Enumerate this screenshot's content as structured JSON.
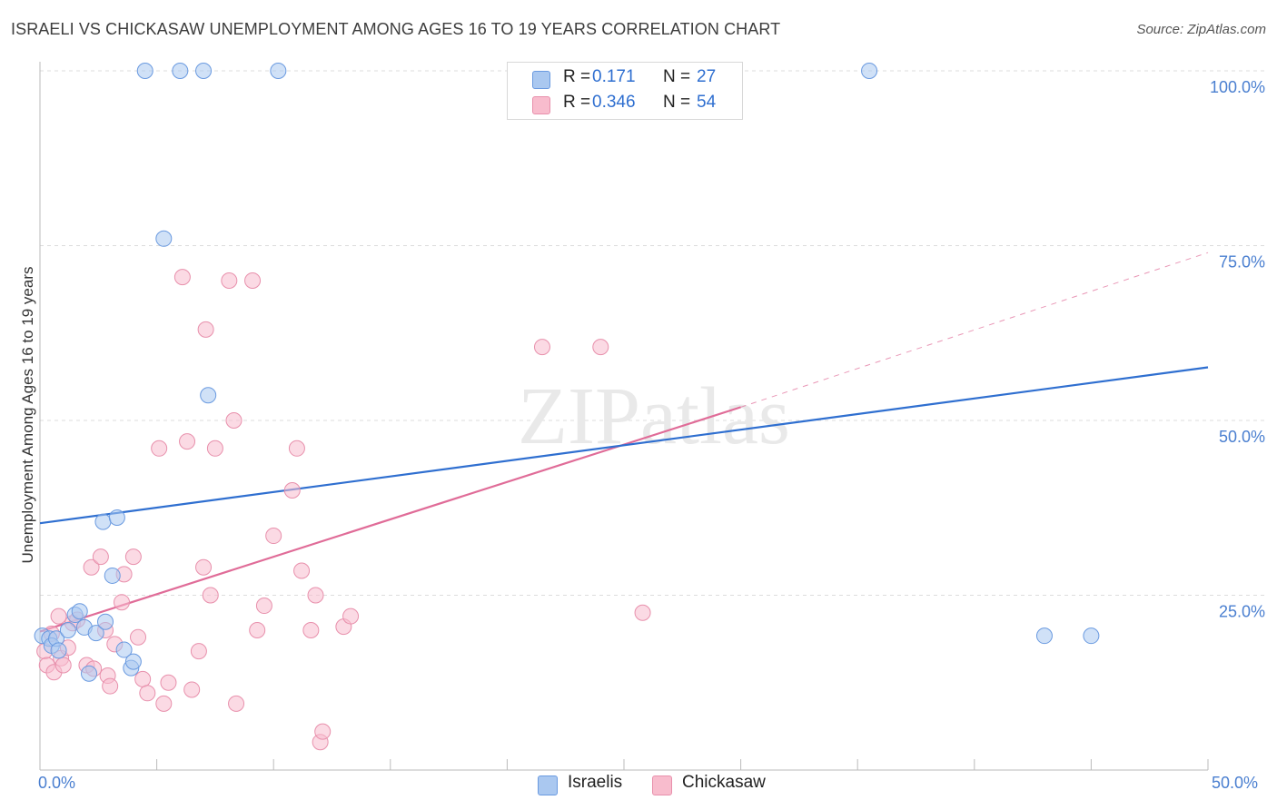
{
  "title": "ISRAELI VS CHICKASAW UNEMPLOYMENT AMONG AGES 16 TO 19 YEARS CORRELATION CHART",
  "source": "Source: ZipAtlas.com",
  "watermark": "ZIPatlas",
  "legend_top": {
    "rows": [
      {
        "r_label": "R =",
        "r_value": "0.171",
        "n_label": "N =",
        "n_value": "27"
      },
      {
        "r_label": "R =",
        "r_value": "0.346",
        "n_label": "N =",
        "n_value": "54"
      }
    ]
  },
  "legend_bottom": {
    "items": [
      "Israelis",
      "Chickasaw"
    ]
  },
  "colors": {
    "israelis_fill": "#aac8f0",
    "israelis_stroke": "#6a9ae0",
    "israelis_line": "#2f6fd0",
    "chickasaw_fill": "#f8bccd",
    "chickasaw_stroke": "#e890ac",
    "chickasaw_line": "#e06c98",
    "tick_text": "#4a7fd0",
    "grid": "#dcdcdc"
  },
  "chart_data": {
    "type": "scatter",
    "xlabel": "",
    "ylabel": "Unemployment Among Ages 16 to 19 years",
    "xlim": [
      0,
      50
    ],
    "ylim": [
      0,
      100
    ],
    "x_tick_labels": [
      "0.0%",
      "50.0%"
    ],
    "y_ticks": [
      {
        "value": 25,
        "label": "25.0%"
      },
      {
        "value": 50,
        "label": "50.0%"
      },
      {
        "value": 75,
        "label": "75.0%"
      },
      {
        "value": 100,
        "label": "100.0%"
      }
    ],
    "series": [
      {
        "name": "Israelis",
        "r": 0.171,
        "n": 27,
        "points": [
          [
            0.1,
            19.2
          ],
          [
            0.4,
            18.8
          ],
          [
            0.5,
            17.8
          ],
          [
            0.7,
            18.8
          ],
          [
            0.8,
            17.1
          ],
          [
            1.2,
            20.0
          ],
          [
            1.5,
            22.2
          ],
          [
            1.7,
            22.7
          ],
          [
            1.9,
            20.4
          ],
          [
            2.1,
            13.8
          ],
          [
            2.4,
            19.6
          ],
          [
            2.7,
            35.5
          ],
          [
            2.8,
            21.2
          ],
          [
            3.1,
            27.8
          ],
          [
            3.3,
            36.1
          ],
          [
            3.6,
            17.2
          ],
          [
            3.9,
            14.6
          ],
          [
            4.0,
            15.5
          ],
          [
            4.5,
            100
          ],
          [
            5.3,
            76.0
          ],
          [
            6.0,
            100
          ],
          [
            7.0,
            100
          ],
          [
            7.2,
            53.6
          ],
          [
            10.2,
            100
          ],
          [
            35.5,
            100
          ],
          [
            43.0,
            19.2
          ],
          [
            45.0,
            19.2
          ]
        ],
        "trend": {
          "x": [
            0,
            50
          ],
          "y": [
            35.3,
            57.6
          ],
          "style": "solid"
        }
      },
      {
        "name": "Chickasaw",
        "r": 0.346,
        "n": 54,
        "points": [
          [
            0.2,
            17.0
          ],
          [
            0.3,
            15.0
          ],
          [
            0.5,
            19.5
          ],
          [
            0.6,
            14.0
          ],
          [
            0.8,
            22.0
          ],
          [
            0.9,
            16.0
          ],
          [
            1.0,
            15.0
          ],
          [
            1.2,
            17.5
          ],
          [
            1.4,
            21.0
          ],
          [
            1.6,
            21.5
          ],
          [
            2.0,
            15.0
          ],
          [
            2.2,
            29.0
          ],
          [
            2.3,
            14.5
          ],
          [
            2.6,
            30.5
          ],
          [
            2.8,
            20.0
          ],
          [
            2.9,
            13.5
          ],
          [
            3.0,
            12.0
          ],
          [
            3.2,
            18.0
          ],
          [
            3.5,
            24.0
          ],
          [
            3.6,
            28.0
          ],
          [
            4.0,
            30.5
          ],
          [
            4.2,
            19.0
          ],
          [
            4.4,
            13.0
          ],
          [
            4.6,
            11.0
          ],
          [
            5.1,
            46.0
          ],
          [
            5.3,
            9.5
          ],
          [
            5.5,
            12.5
          ],
          [
            6.1,
            70.5
          ],
          [
            6.3,
            47.0
          ],
          [
            6.5,
            11.5
          ],
          [
            6.8,
            17.0
          ],
          [
            7.0,
            29.0
          ],
          [
            7.1,
            63.0
          ],
          [
            7.3,
            25.0
          ],
          [
            7.5,
            46.0
          ],
          [
            8.1,
            70.0
          ],
          [
            8.3,
            50.0
          ],
          [
            8.4,
            9.5
          ],
          [
            9.1,
            70.0
          ],
          [
            9.3,
            20.0
          ],
          [
            9.6,
            23.5
          ],
          [
            10.0,
            33.5
          ],
          [
            10.8,
            40.0
          ],
          [
            11.0,
            46.0
          ],
          [
            11.2,
            28.5
          ],
          [
            11.6,
            20.0
          ],
          [
            11.8,
            25.0
          ],
          [
            12.0,
            4.0
          ],
          [
            12.1,
            5.5
          ],
          [
            13.0,
            20.5
          ],
          [
            13.3,
            22.0
          ],
          [
            21.5,
            60.5
          ],
          [
            24.0,
            60.5
          ],
          [
            25.8,
            22.5
          ]
        ],
        "trend": {
          "x": [
            0,
            30
          ],
          "y": [
            19.8,
            51.9
          ],
          "style": "solid"
        },
        "trend_extension": {
          "x": [
            30,
            50
          ],
          "y": [
            51.9,
            74.0
          ],
          "style": "dashed"
        }
      }
    ]
  }
}
